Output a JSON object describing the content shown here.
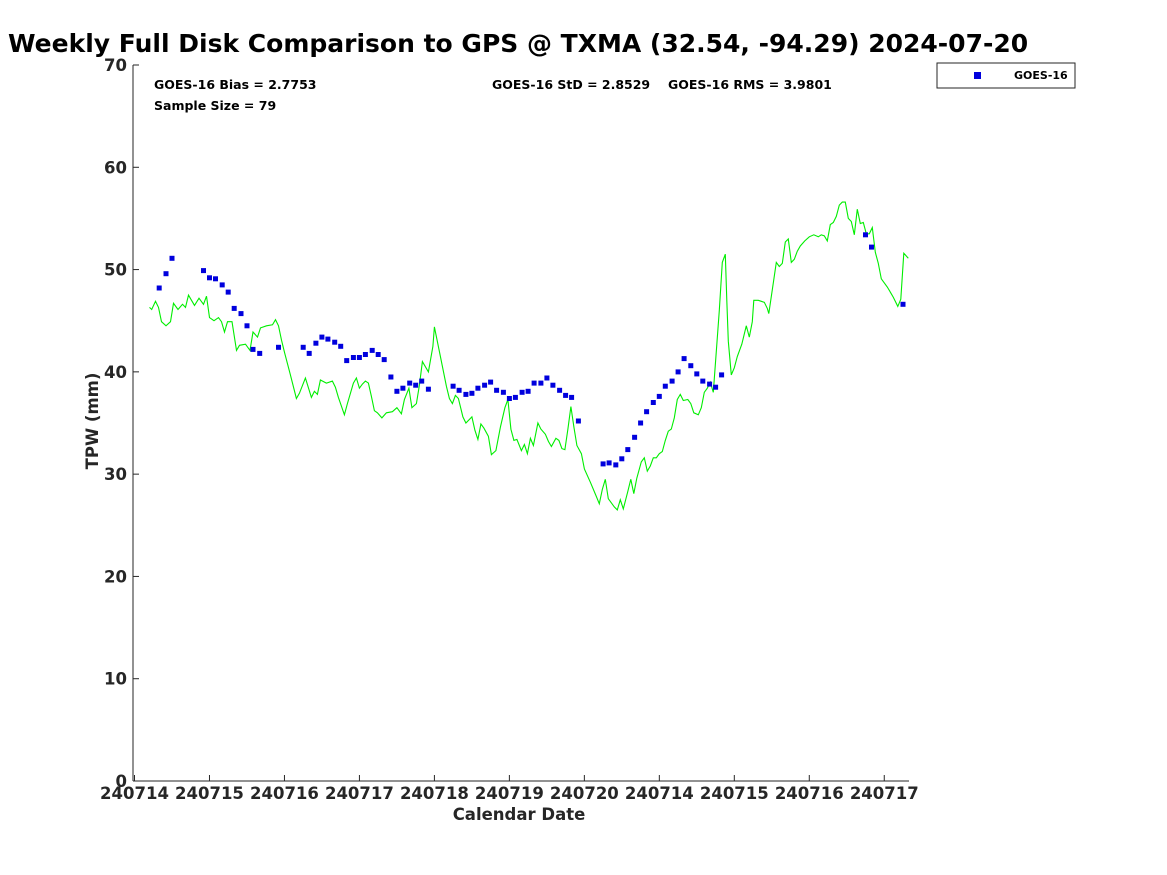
{
  "chart_data": {
    "type": "scatter",
    "title": "Weekly Full Disk Comparison to GPS @ TXMA (32.54, -94.29) 2024-07-20",
    "xlabel": "Calendar Date",
    "ylabel": "TPW (mm)",
    "ylim": [
      0,
      70
    ],
    "yticks": [
      0,
      10,
      20,
      30,
      40,
      50,
      60,
      70
    ],
    "xticks": [
      "240714",
      "240715",
      "240716",
      "240717",
      "240718",
      "240719",
      "240720",
      "240714",
      "240715",
      "240716",
      "240717"
    ],
    "xlim": [
      -0.02,
      10.33
    ],
    "grid": false,
    "legend": {
      "placement": "top-right",
      "entries": [
        "GOES-16"
      ]
    },
    "stats": {
      "bias": "GOES-16 Bias = 2.7753",
      "sample": "Sample Size = 79",
      "std": "GOES-16 StD = 2.8529",
      "rms": "GOES-16 RMS = 3.9801"
    },
    "colors": {
      "goes": "#0000dd",
      "gps": "#00ee00",
      "axis": "#262626"
    },
    "series": [
      {
        "name": "GOES-16",
        "marker": "square",
        "points": [
          [
            0.33,
            48.2
          ],
          [
            0.42,
            49.6
          ],
          [
            0.5,
            51.1
          ],
          [
            0.92,
            49.9
          ],
          [
            1.0,
            49.2
          ],
          [
            1.08,
            49.1
          ],
          [
            1.17,
            48.5
          ],
          [
            1.25,
            47.8
          ],
          [
            1.33,
            46.2
          ],
          [
            1.42,
            45.7
          ],
          [
            1.5,
            44.5
          ],
          [
            1.58,
            42.2
          ],
          [
            1.67,
            41.8
          ],
          [
            1.92,
            42.4
          ],
          [
            2.25,
            42.4
          ],
          [
            2.33,
            41.8
          ],
          [
            2.42,
            42.8
          ],
          [
            2.5,
            43.4
          ],
          [
            2.58,
            43.2
          ],
          [
            2.67,
            42.9
          ],
          [
            2.75,
            42.5
          ],
          [
            2.83,
            41.1
          ],
          [
            2.92,
            41.4
          ],
          [
            3.0,
            41.4
          ],
          [
            3.08,
            41.7
          ],
          [
            3.17,
            42.1
          ],
          [
            3.25,
            41.7
          ],
          [
            3.33,
            41.2
          ],
          [
            3.42,
            39.5
          ],
          [
            3.5,
            38.1
          ],
          [
            3.58,
            38.4
          ],
          [
            3.67,
            38.9
          ],
          [
            3.75,
            38.7
          ],
          [
            3.83,
            39.1
          ],
          [
            3.92,
            38.3
          ],
          [
            4.25,
            38.6
          ],
          [
            4.33,
            38.2
          ],
          [
            4.42,
            37.8
          ],
          [
            4.5,
            37.9
          ],
          [
            4.58,
            38.4
          ],
          [
            4.67,
            38.7
          ],
          [
            4.75,
            39.0
          ],
          [
            4.83,
            38.2
          ],
          [
            4.92,
            38.0
          ],
          [
            5.0,
            37.4
          ],
          [
            5.08,
            37.5
          ],
          [
            5.17,
            38.0
          ],
          [
            5.25,
            38.1
          ],
          [
            5.33,
            38.9
          ],
          [
            5.42,
            38.9
          ],
          [
            5.5,
            39.4
          ],
          [
            5.58,
            38.7
          ],
          [
            5.67,
            38.2
          ],
          [
            5.75,
            37.7
          ],
          [
            5.83,
            37.5
          ],
          [
            5.92,
            35.2
          ],
          [
            6.25,
            31.0
          ],
          [
            6.33,
            31.1
          ],
          [
            6.42,
            30.9
          ],
          [
            6.5,
            31.5
          ],
          [
            6.58,
            32.4
          ],
          [
            6.67,
            33.6
          ],
          [
            6.75,
            35.0
          ],
          [
            6.83,
            36.1
          ],
          [
            6.92,
            37.0
          ],
          [
            7.0,
            37.6
          ],
          [
            7.08,
            38.6
          ],
          [
            7.17,
            39.1
          ],
          [
            7.25,
            40.0
          ],
          [
            7.33,
            41.3
          ],
          [
            7.42,
            40.6
          ],
          [
            7.5,
            39.8
          ],
          [
            7.58,
            39.1
          ],
          [
            7.67,
            38.8
          ],
          [
            7.75,
            38.5
          ],
          [
            7.83,
            39.7
          ],
          [
            9.75,
            53.4
          ],
          [
            9.83,
            52.2
          ],
          [
            10.25,
            46.6
          ]
        ]
      },
      {
        "name": "GPS",
        "marker": "line",
        "points": [
          [
            0.2,
            46.3
          ],
          [
            0.23,
            46.1
          ],
          [
            0.28,
            46.9
          ],
          [
            0.32,
            46.3
          ],
          [
            0.36,
            44.9
          ],
          [
            0.42,
            44.5
          ],
          [
            0.48,
            44.9
          ],
          [
            0.52,
            46.7
          ],
          [
            0.58,
            46.1
          ],
          [
            0.64,
            46.6
          ],
          [
            0.68,
            46.3
          ],
          [
            0.72,
            47.5
          ],
          [
            0.76,
            47.0
          ],
          [
            0.8,
            46.5
          ],
          [
            0.86,
            47.2
          ],
          [
            0.92,
            46.6
          ],
          [
            0.96,
            47.4
          ],
          [
            1.0,
            45.3
          ],
          [
            1.06,
            45.0
          ],
          [
            1.12,
            45.3
          ],
          [
            1.16,
            44.9
          ],
          [
            1.2,
            43.9
          ],
          [
            1.24,
            44.9
          ],
          [
            1.3,
            44.9
          ],
          [
            1.36,
            42.1
          ],
          [
            1.4,
            42.6
          ],
          [
            1.48,
            42.7
          ],
          [
            1.54,
            42.1
          ],
          [
            1.58,
            43.9
          ],
          [
            1.64,
            43.4
          ],
          [
            1.68,
            44.3
          ],
          [
            1.76,
            44.5
          ],
          [
            1.84,
            44.6
          ],
          [
            1.88,
            45.1
          ],
          [
            1.92,
            44.5
          ],
          [
            1.96,
            43.1
          ],
          [
            2.0,
            41.9
          ],
          [
            2.08,
            39.7
          ],
          [
            2.16,
            37.4
          ],
          [
            2.2,
            37.9
          ],
          [
            2.28,
            39.4
          ],
          [
            2.36,
            37.5
          ],
          [
            2.4,
            38.1
          ],
          [
            2.44,
            37.8
          ],
          [
            2.48,
            39.2
          ],
          [
            2.56,
            38.9
          ],
          [
            2.64,
            39.1
          ],
          [
            2.68,
            38.5
          ],
          [
            2.72,
            37.5
          ],
          [
            2.8,
            35.8
          ],
          [
            2.84,
            36.9
          ],
          [
            2.92,
            38.9
          ],
          [
            2.96,
            39.4
          ],
          [
            3.0,
            38.4
          ],
          [
            3.04,
            38.8
          ],
          [
            3.08,
            39.1
          ],
          [
            3.12,
            38.9
          ],
          [
            3.16,
            37.6
          ],
          [
            3.2,
            36.2
          ],
          [
            3.24,
            36.0
          ],
          [
            3.3,
            35.5
          ],
          [
            3.36,
            36.0
          ],
          [
            3.44,
            36.1
          ],
          [
            3.5,
            36.5
          ],
          [
            3.56,
            35.9
          ],
          [
            3.6,
            37.3
          ],
          [
            3.66,
            38.4
          ],
          [
            3.7,
            36.5
          ],
          [
            3.76,
            36.9
          ],
          [
            3.8,
            38.7
          ],
          [
            3.84,
            41.0
          ],
          [
            3.92,
            40.0
          ],
          [
            3.98,
            42.5
          ],
          [
            4.0,
            44.4
          ],
          [
            4.08,
            41.5
          ],
          [
            4.16,
            38.6
          ],
          [
            4.2,
            37.4
          ],
          [
            4.24,
            36.9
          ],
          [
            4.28,
            37.7
          ],
          [
            4.32,
            37.4
          ],
          [
            4.38,
            35.6
          ],
          [
            4.42,
            35.0
          ],
          [
            4.5,
            35.6
          ],
          [
            4.54,
            34.3
          ],
          [
            4.58,
            33.4
          ],
          [
            4.62,
            34.9
          ],
          [
            4.66,
            34.5
          ],
          [
            4.72,
            33.7
          ],
          [
            4.76,
            31.9
          ],
          [
            4.82,
            32.3
          ],
          [
            4.88,
            34.6
          ],
          [
            4.94,
            36.5
          ],
          [
            4.98,
            37.3
          ],
          [
            5.02,
            34.4
          ],
          [
            5.06,
            33.3
          ],
          [
            5.1,
            33.4
          ],
          [
            5.16,
            32.3
          ],
          [
            5.2,
            32.9
          ],
          [
            5.24,
            32.0
          ],
          [
            5.28,
            33.5
          ],
          [
            5.32,
            32.8
          ],
          [
            5.38,
            35.0
          ],
          [
            5.42,
            34.4
          ],
          [
            5.48,
            33.9
          ],
          [
            5.52,
            33.2
          ],
          [
            5.56,
            32.7
          ],
          [
            5.62,
            33.5
          ],
          [
            5.66,
            33.3
          ],
          [
            5.7,
            32.5
          ],
          [
            5.74,
            32.4
          ],
          [
            5.78,
            34.4
          ],
          [
            5.82,
            36.6
          ],
          [
            5.86,
            34.6
          ],
          [
            5.9,
            32.8
          ],
          [
            5.96,
            32.0
          ],
          [
            6.0,
            30.5
          ],
          [
            6.08,
            29.2
          ],
          [
            6.16,
            27.8
          ],
          [
            6.2,
            27.1
          ],
          [
            6.24,
            28.5
          ],
          [
            6.28,
            29.5
          ],
          [
            6.32,
            27.6
          ],
          [
            6.4,
            26.8
          ],
          [
            6.44,
            26.5
          ],
          [
            6.48,
            27.5
          ],
          [
            6.52,
            26.6
          ],
          [
            6.58,
            28.3
          ],
          [
            6.62,
            29.5
          ],
          [
            6.66,
            28.1
          ],
          [
            6.7,
            29.6
          ],
          [
            6.76,
            31.2
          ],
          [
            6.8,
            31.6
          ],
          [
            6.84,
            30.3
          ],
          [
            6.88,
            30.8
          ],
          [
            6.92,
            31.6
          ],
          [
            6.96,
            31.6
          ],
          [
            7.0,
            32.0
          ],
          [
            7.04,
            32.2
          ],
          [
            7.08,
            33.3
          ],
          [
            7.12,
            34.2
          ],
          [
            7.16,
            34.4
          ],
          [
            7.2,
            35.5
          ],
          [
            7.24,
            37.3
          ],
          [
            7.28,
            37.8
          ],
          [
            7.32,
            37.2
          ],
          [
            7.38,
            37.3
          ],
          [
            7.42,
            36.9
          ],
          [
            7.46,
            36.0
          ],
          [
            7.52,
            35.8
          ],
          [
            7.56,
            36.5
          ],
          [
            7.6,
            38.0
          ],
          [
            7.64,
            38.4
          ],
          [
            7.68,
            39.0
          ],
          [
            7.72,
            38.0
          ],
          [
            7.76,
            42.0
          ],
          [
            7.8,
            46.0
          ],
          [
            7.84,
            50.7
          ],
          [
            7.88,
            51.5
          ],
          [
            7.9,
            47.0
          ],
          [
            7.92,
            43.0
          ],
          [
            7.96,
            39.7
          ],
          [
            8.0,
            40.4
          ],
          [
            8.04,
            41.5
          ],
          [
            8.1,
            42.7
          ],
          [
            8.16,
            44.5
          ],
          [
            8.2,
            43.4
          ],
          [
            8.24,
            44.9
          ],
          [
            8.26,
            47.0
          ],
          [
            8.32,
            47.0
          ],
          [
            8.4,
            46.8
          ],
          [
            8.44,
            46.2
          ],
          [
            8.46,
            45.7
          ],
          [
            8.52,
            48.7
          ],
          [
            8.56,
            50.7
          ],
          [
            8.6,
            50.3
          ],
          [
            8.64,
            50.6
          ],
          [
            8.68,
            52.7
          ],
          [
            8.72,
            53.0
          ],
          [
            8.76,
            50.7
          ],
          [
            8.8,
            51.0
          ],
          [
            8.84,
            51.8
          ],
          [
            8.88,
            52.3
          ],
          [
            8.94,
            52.8
          ],
          [
            9.0,
            53.2
          ],
          [
            9.06,
            53.4
          ],
          [
            9.12,
            53.2
          ],
          [
            9.16,
            53.4
          ],
          [
            9.2,
            53.3
          ],
          [
            9.24,
            52.8
          ],
          [
            9.28,
            54.4
          ],
          [
            9.32,
            54.6
          ],
          [
            9.36,
            55.2
          ],
          [
            9.4,
            56.3
          ],
          [
            9.44,
            56.6
          ],
          [
            9.48,
            56.6
          ],
          [
            9.52,
            55.0
          ],
          [
            9.56,
            54.7
          ],
          [
            9.6,
            53.4
          ],
          [
            9.64,
            55.9
          ],
          [
            9.68,
            54.5
          ],
          [
            9.72,
            54.6
          ],
          [
            9.76,
            53.5
          ],
          [
            9.8,
            53.5
          ],
          [
            9.84,
            54.1
          ],
          [
            9.88,
            51.7
          ],
          [
            9.92,
            50.6
          ],
          [
            9.96,
            49.1
          ],
          [
            10.04,
            48.3
          ],
          [
            10.12,
            47.3
          ],
          [
            10.18,
            46.4
          ],
          [
            10.22,
            47.1
          ],
          [
            10.26,
            51.6
          ],
          [
            10.32,
            51.1
          ]
        ]
      }
    ]
  }
}
